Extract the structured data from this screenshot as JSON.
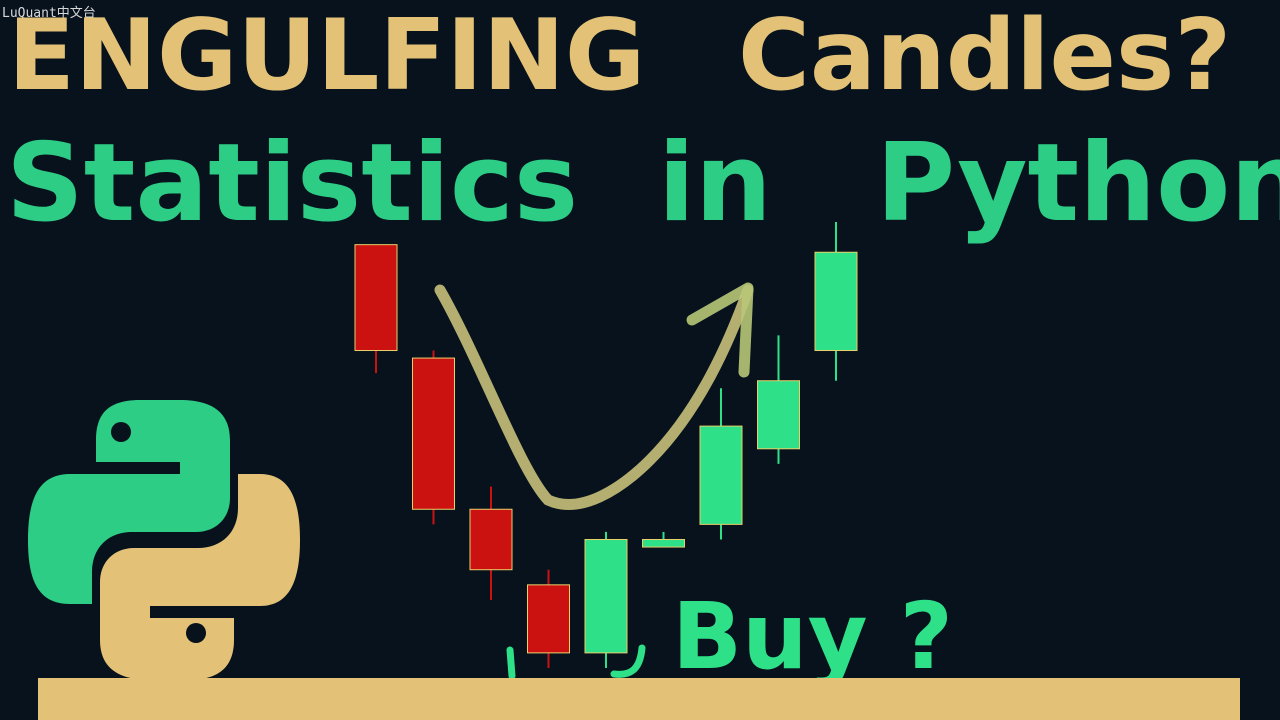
{
  "watermark": "LuQuant中文台",
  "title": {
    "line1_word1": "ENGULFING",
    "line1_word2": "Candles?",
    "line2_word1": "Statistics",
    "line2_word2": "in",
    "line2_word3": "Python"
  },
  "annotation": {
    "buy_text": "Buy ?"
  },
  "colors": {
    "background": "#07121d",
    "gold": "#e3c277",
    "green": "#2dcd86",
    "bearish": "#cc1111",
    "bullish": "#2ee088"
  },
  "icons": [
    "python-logo-icon",
    "curved-arrow-icon"
  ],
  "candles": [
    {
      "direction": "down",
      "open": 100,
      "close": 86,
      "high": 100,
      "low": 83
    },
    {
      "direction": "down",
      "open": 85,
      "close": 65,
      "high": 86,
      "low": 63
    },
    {
      "direction": "down",
      "open": 65,
      "close": 57,
      "high": 68,
      "low": 53
    },
    {
      "direction": "down",
      "open": 55,
      "close": 46,
      "high": 57,
      "low": 44
    },
    {
      "direction": "up",
      "open": 46,
      "close": 61,
      "high": 62,
      "low": 44
    },
    {
      "direction": "up",
      "open": 60,
      "close": 61,
      "high": 62,
      "low": 60
    },
    {
      "direction": "up",
      "open": 63,
      "close": 76,
      "high": 81,
      "low": 61
    },
    {
      "direction": "up",
      "open": 73,
      "close": 82,
      "high": 88,
      "low": 71
    },
    {
      "direction": "up",
      "open": 86,
      "close": 99,
      "high": 103,
      "low": 82
    }
  ]
}
